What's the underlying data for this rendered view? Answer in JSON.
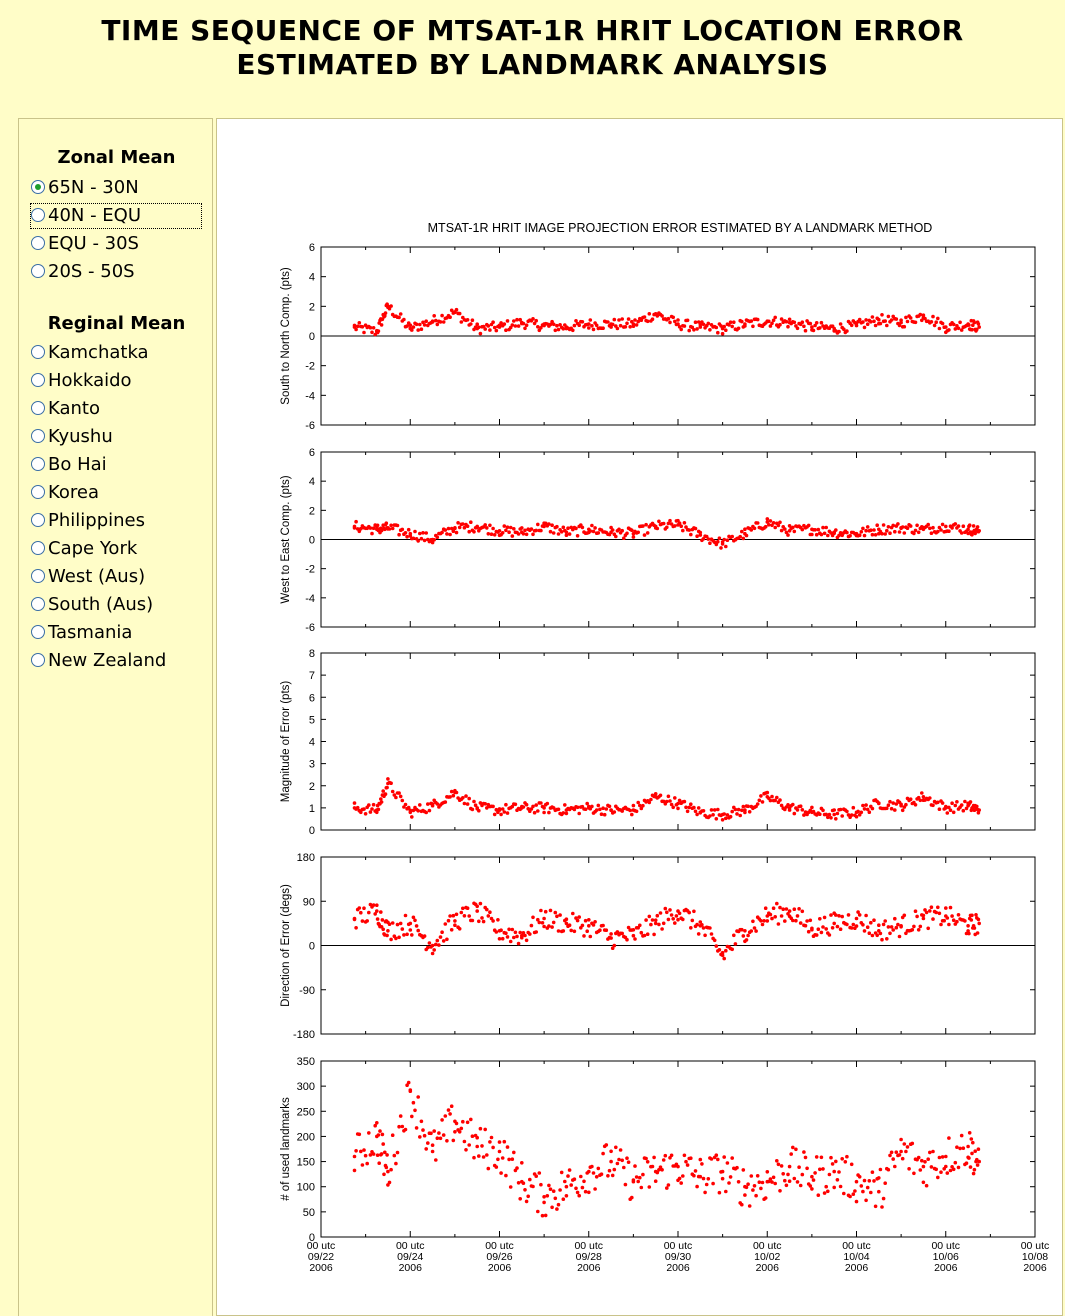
{
  "page": {
    "title_line1": "TIME SEQUENCE OF MTSAT-1R HRIT LOCATION ERROR",
    "title_line2": "ESTIMATED BY LANDMARK ANALYSIS"
  },
  "sidebar": {
    "zonal_title": "Zonal Mean",
    "zonal_items": [
      "65N - 30N",
      "40N - EQU",
      "EQU - 30S",
      "20S - 50S"
    ],
    "zonal_selected": 0,
    "regional_title": "Reginal Mean",
    "regional_items": [
      "Kamchatka",
      "Hokkaido",
      "Kanto",
      "Kyushu",
      "Bo Hai",
      "Korea",
      "Philippines",
      "Cape York",
      "West (Aus)",
      "South (Aus)",
      "Tasmania",
      "New Zealand"
    ]
  },
  "chart_data": {
    "type": "scatter",
    "title": "MTSAT-1R HRIT IMAGE PROJECTION ERROR ESTIMATED BY A LANDMARK METHOD",
    "color": "#ff0000",
    "x_start": "2006-09-22 00 utc",
    "x_end": "2006-10-08 00 utc",
    "x_tick_labels": [
      [
        "00 utc",
        "09/22",
        "2006"
      ],
      [
        "00 utc",
        "09/24",
        "2006"
      ],
      [
        "00 utc",
        "09/26",
        "2006"
      ],
      [
        "00 utc",
        "09/28",
        "2006"
      ],
      [
        "00 utc",
        "09/30",
        "2006"
      ],
      [
        "00 utc",
        "10/02",
        "2006"
      ],
      [
        "00 utc",
        "10/04",
        "2006"
      ],
      [
        "00 utc",
        "10/06",
        "2006"
      ],
      [
        "00 utc",
        "10/08",
        "2006"
      ]
    ],
    "data_range_x": [
      "2006-09-22 18 utc",
      "2006-10-06 18 utc"
    ],
    "panels": [
      {
        "ylabel": "South to North Comp. (pts)",
        "ylim": [
          -6,
          6
        ],
        "yticks": [
          -6,
          -4,
          -2,
          0,
          2,
          4,
          6
        ],
        "zero_line": true,
        "x": [
          "09/22 18",
          "09/23 06",
          "09/23 12",
          "09/24 00",
          "09/24 12",
          "09/25 00",
          "09/25 12",
          "09/26 00",
          "09/26 12",
          "09/27 00",
          "09/27 12",
          "09/28 00",
          "09/28 12",
          "09/29 00",
          "09/29 12",
          "09/30 00",
          "09/30 12",
          "10/01 00",
          "10/01 12",
          "10/02 00",
          "10/02 12",
          "10/03 00",
          "10/03 12",
          "10/04 00",
          "10/04 12",
          "10/05 00",
          "10/05 12",
          "10/06 00",
          "10/06 12",
          "10/06 18"
        ],
        "y": [
          0.6,
          0.3,
          2.0,
          0.5,
          1.0,
          1.6,
          0.5,
          0.6,
          0.9,
          0.7,
          0.6,
          0.8,
          0.8,
          0.8,
          1.5,
          0.8,
          0.6,
          0.5,
          0.8,
          1.0,
          0.9,
          0.6,
          0.5,
          0.7,
          1.1,
          0.9,
          1.4,
          0.6,
          0.8,
          0.6
        ]
      },
      {
        "ylabel": "West to East Comp. (pts)",
        "ylim": [
          -6,
          6
        ],
        "yticks": [
          -6,
          -4,
          -2,
          0,
          2,
          4,
          6
        ],
        "zero_line": true,
        "x": [
          "09/22 18",
          "09/23 06",
          "09/23 12",
          "09/24 00",
          "09/24 12",
          "09/25 00",
          "09/25 12",
          "09/26 00",
          "09/26 12",
          "09/27 00",
          "09/27 12",
          "09/28 00",
          "09/28 12",
          "09/29 00",
          "09/29 12",
          "09/30 00",
          "09/30 12",
          "10/01 00",
          "10/01 12",
          "10/02 00",
          "10/02 12",
          "10/03 00",
          "10/03 12",
          "10/04 00",
          "10/04 12",
          "10/05 00",
          "10/05 12",
          "10/06 00",
          "10/06 12",
          "10/06 18"
        ],
        "y": [
          0.9,
          0.7,
          0.8,
          0.4,
          0.0,
          0.8,
          0.9,
          0.6,
          0.5,
          0.9,
          0.5,
          0.7,
          0.5,
          0.4,
          0.9,
          1.0,
          0.3,
          -0.3,
          0.4,
          1.2,
          0.6,
          0.7,
          0.5,
          0.4,
          0.7,
          0.8,
          0.7,
          0.9,
          0.7,
          0.6
        ]
      },
      {
        "ylabel": "Magnitude of Error (pts)",
        "ylim": [
          0,
          8
        ],
        "yticks": [
          0,
          1,
          2,
          3,
          4,
          5,
          6,
          7,
          8
        ],
        "zero_line": false,
        "x": [
          "09/22 18",
          "09/23 06",
          "09/23 12",
          "09/24 00",
          "09/24 12",
          "09/25 00",
          "09/25 12",
          "09/26 00",
          "09/26 12",
          "09/27 00",
          "09/27 12",
          "09/28 00",
          "09/28 12",
          "09/29 00",
          "09/29 12",
          "09/30 00",
          "09/30 12",
          "10/01 00",
          "10/01 12",
          "10/02 00",
          "10/02 12",
          "10/03 00",
          "10/03 12",
          "10/04 00",
          "10/04 12",
          "10/05 00",
          "10/05 12",
          "10/06 00",
          "10/06 12",
          "10/06 18"
        ],
        "y": [
          1.0,
          0.9,
          2.1,
          0.8,
          1.1,
          1.7,
          1.0,
          0.9,
          1.0,
          1.0,
          0.9,
          1.0,
          0.9,
          0.9,
          1.5,
          1.2,
          0.8,
          0.7,
          0.9,
          1.5,
          1.0,
          0.8,
          0.7,
          0.8,
          1.2,
          1.1,
          1.5,
          1.0,
          1.1,
          0.9
        ]
      },
      {
        "ylabel": "Direction of Error (degs)",
        "ylim": [
          -180,
          180
        ],
        "yticks": [
          -180,
          -90,
          0,
          90,
          180
        ],
        "zero_line": true,
        "x": [
          "09/22 18",
          "09/23 06",
          "09/23 12",
          "09/24 00",
          "09/24 12",
          "09/25 00",
          "09/25 12",
          "09/26 00",
          "09/26 12",
          "09/27 00",
          "09/27 12",
          "09/28 00",
          "09/28 12",
          "09/29 00",
          "09/29 12",
          "09/30 00",
          "09/30 12",
          "10/01 00",
          "10/01 12",
          "10/02 00",
          "10/02 12",
          "10/03 00",
          "10/03 12",
          "10/04 00",
          "10/04 12",
          "10/05 00",
          "10/05 12",
          "10/06 00",
          "10/06 12",
          "10/06 18"
        ],
        "y": [
          55,
          70,
          30,
          45,
          0,
          50,
          70,
          30,
          20,
          55,
          45,
          40,
          15,
          20,
          45,
          70,
          40,
          -20,
          30,
          60,
          70,
          35,
          45,
          55,
          30,
          40,
          55,
          60,
          40,
          45
        ]
      },
      {
        "ylabel": "# of used landmarks",
        "ylim": [
          0,
          350
        ],
        "yticks": [
          0,
          50,
          100,
          150,
          200,
          250,
          300,
          350
        ],
        "zero_line": false,
        "x": [
          "09/22 18",
          "09/23 06",
          "09/23 12",
          "09/24 00",
          "09/24 12",
          "09/25 00",
          "09/25 12",
          "09/26 00",
          "09/26 12",
          "09/27 00",
          "09/27 12",
          "09/28 00",
          "09/28 12",
          "09/29 00",
          "09/29 12",
          "09/30 00",
          "09/30 12",
          "10/01 00",
          "10/01 12",
          "10/02 00",
          "10/02 12",
          "10/03 00",
          "10/03 12",
          "10/04 00",
          "10/04 12",
          "10/05 00",
          "10/05 12",
          "10/06 00",
          "10/06 12",
          "10/06 18"
        ],
        "y": [
          160,
          200,
          130,
          290,
          170,
          230,
          180,
          170,
          110,
          80,
          100,
          130,
          150,
          110,
          130,
          140,
          120,
          130,
          100,
          110,
          140,
          120,
          130,
          110,
          90,
          170,
          140,
          160,
          180,
          150
        ]
      }
    ]
  }
}
